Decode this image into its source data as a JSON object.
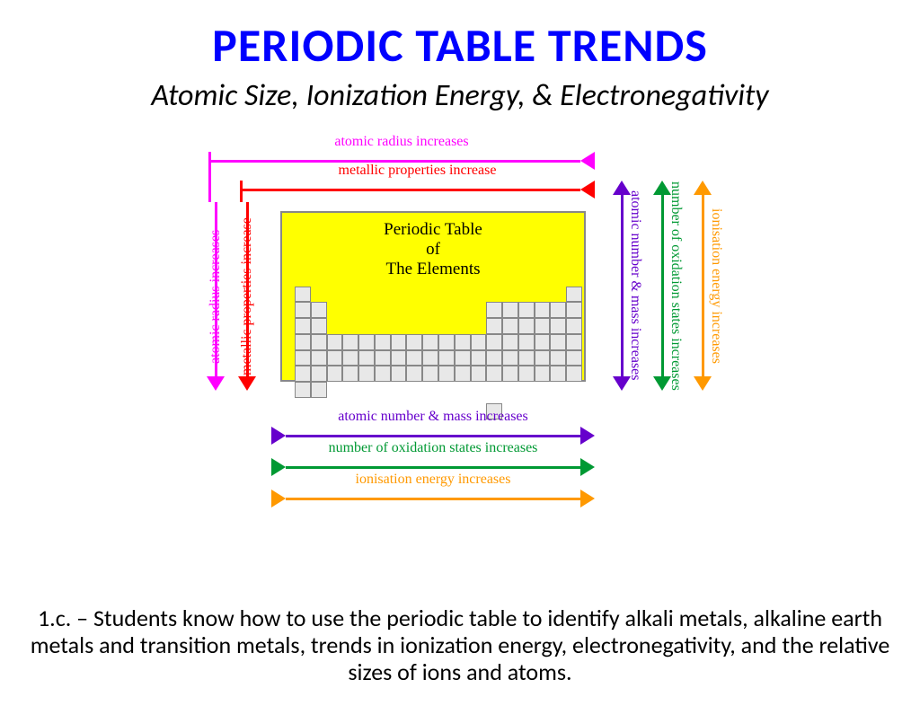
{
  "title": "PERIODIC TABLE TRENDS",
  "subtitle": "Atomic Size, Ionization Energy, & Electronegativity",
  "footer": "1.c. – Students know how to use the periodic table to identify alkali metals, alkaline earth metals and transition metals, trends in ionization energy, electronegativity, and the relative sizes of ions and atoms.",
  "pt_box": {
    "line1": "Periodic Table",
    "line2": "of",
    "line3": "The Elements",
    "bg_color": "#ffff00",
    "border_color": "#888888"
  },
  "colors": {
    "magenta": "#ff00ff",
    "red": "#ff0000",
    "purple": "#6600cc",
    "green": "#009933",
    "orange": "#ff9900"
  },
  "arrows": {
    "top1": {
      "label": "atomic radius increases",
      "color": "#ff00ff"
    },
    "top2": {
      "label": "metallic properties increase",
      "color": "#ff0000"
    },
    "left1": {
      "label": "atomic radius increases",
      "color": "#ff00ff"
    },
    "left2": {
      "label": "metallic properties increase",
      "color": "#ff0000"
    },
    "right1": {
      "label": "atomic number & mass increases",
      "color": "#6600cc"
    },
    "right2": {
      "label": "number of oxidation states increases",
      "color": "#009933"
    },
    "right3": {
      "label": "ionisation energy increases",
      "color": "#ff9900"
    },
    "bottom1": {
      "label": "atomic number & mass increases",
      "color": "#6600cc"
    },
    "bottom2": {
      "label": "number of oxidation states increases",
      "color": "#009933"
    },
    "bottom3": {
      "label": "ionisation energy increases",
      "color": "#ff9900"
    }
  }
}
